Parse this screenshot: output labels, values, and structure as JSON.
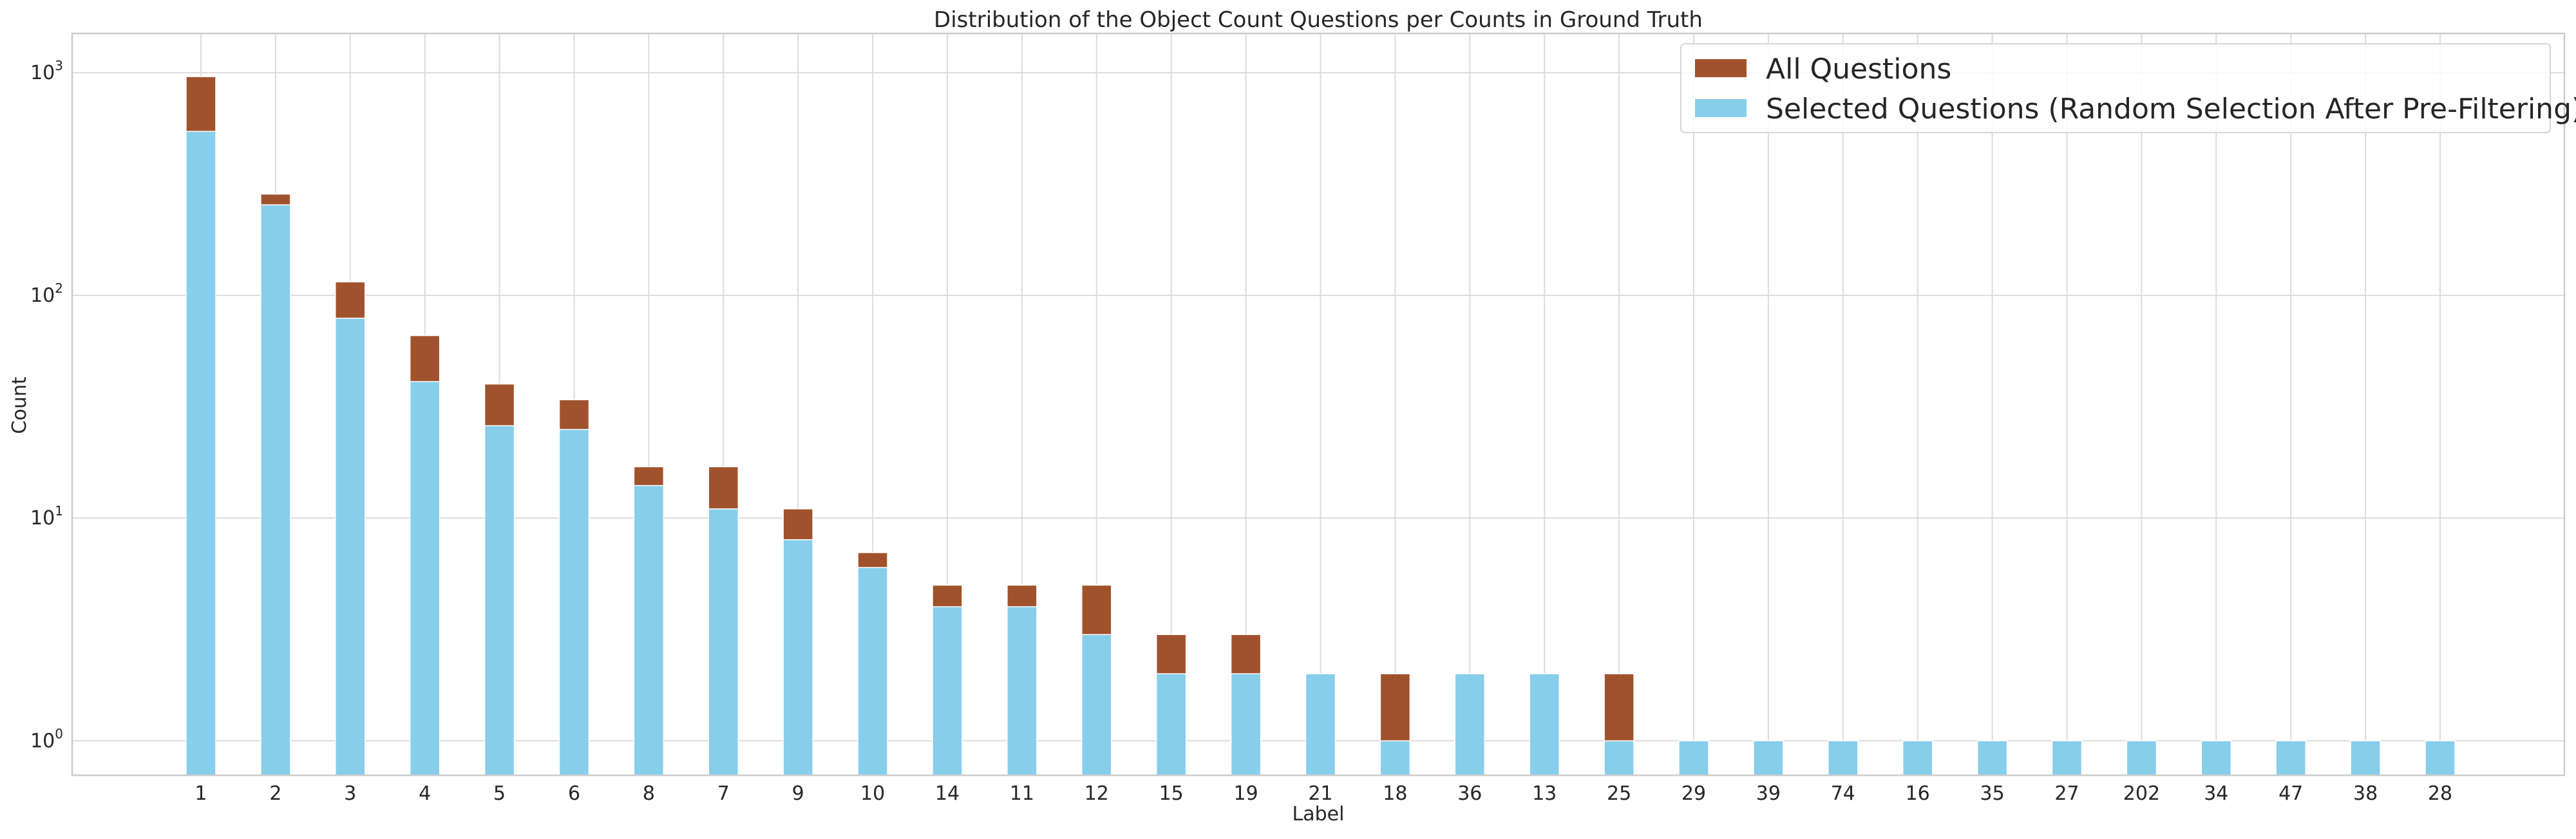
{
  "chart_data": {
    "type": "bar",
    "stacking": "overlay",
    "title": "Distribution of the Object Count Questions per Counts in Ground Truth",
    "xlabel": "Label",
    "ylabel": "Count",
    "yscale": "log",
    "ylim": [
      0.7,
      1500
    ],
    "y_ticks": [
      {
        "value": 1,
        "base": "10",
        "exp": "0"
      },
      {
        "value": 10,
        "base": "10",
        "exp": "1"
      },
      {
        "value": 100,
        "base": "10",
        "exp": "2"
      },
      {
        "value": 1000,
        "base": "10",
        "exp": "3"
      }
    ],
    "grid": true,
    "legend_position": "top-right",
    "categories": [
      "1",
      "2",
      "3",
      "4",
      "5",
      "6",
      "8",
      "7",
      "9",
      "10",
      "14",
      "11",
      "12",
      "15",
      "19",
      "21",
      "18",
      "36",
      "13",
      "25",
      "29",
      "39",
      "74",
      "16",
      "35",
      "27",
      "202",
      "34",
      "47",
      "38",
      "28"
    ],
    "series": [
      {
        "name": "All Questions",
        "color": "#a0522d",
        "values": [
          960,
          285,
          115,
          66,
          40,
          34,
          17,
          17,
          11,
          7,
          5,
          5,
          5,
          3,
          3,
          2,
          2,
          2,
          2,
          2,
          1,
          1,
          1,
          1,
          1,
          1,
          1,
          1,
          1,
          1,
          1
        ]
      },
      {
        "name": "Selected Questions (Random Selection After Pre-Filtering)",
        "color": "#87ceeb",
        "values": [
          545,
          255,
          79,
          41,
          26,
          25,
          14,
          11,
          8,
          6,
          4,
          4,
          3,
          2,
          2,
          2,
          1,
          2,
          2,
          1,
          1,
          1,
          1,
          1,
          1,
          1,
          1,
          1,
          1,
          1,
          1
        ]
      }
    ]
  }
}
